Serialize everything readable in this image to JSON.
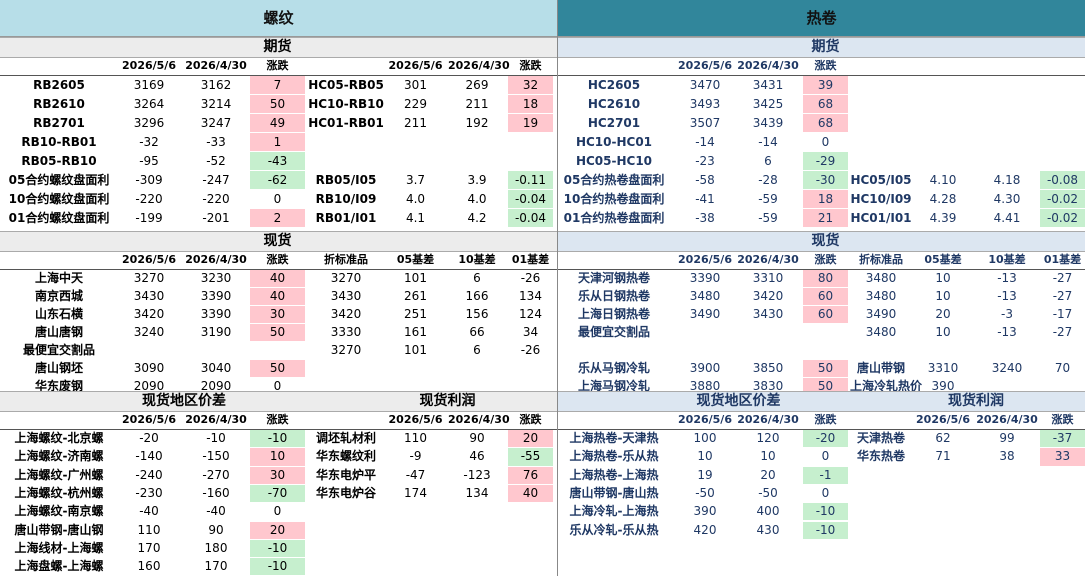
{
  "left": {
    "title": "螺纹",
    "sections": [
      {
        "titles": [
          "期货"
        ],
        "highlight_cols": [
          3,
          7
        ],
        "header": [
          null,
          "2026/5/6",
          "2026/4/30",
          "涨跌",
          null,
          "2026/5/6",
          "2026/4/30",
          "涨跌"
        ],
        "rows": [
          [
            "RB2605",
            "3169",
            "3162",
            "7",
            "HC05-RB05",
            "301",
            "269",
            "32"
          ],
          [
            "RB2610",
            "3264",
            "3214",
            "50",
            "HC10-RB10",
            "229",
            "211",
            "18"
          ],
          [
            "RB2701",
            "3296",
            "3247",
            "49",
            "HC01-RB01",
            "211",
            "192",
            "19"
          ],
          [
            "RB10-RB01",
            "-32",
            "-33",
            "1"
          ],
          [
            "RB05-RB10",
            "-95",
            "-52",
            "-43"
          ],
          [
            "05合约螺纹盘面利",
            "-309",
            "-247",
            "-62",
            "RB05/I05",
            "3.7",
            "3.9",
            "-0.11"
          ],
          [
            "10合约螺纹盘面利",
            "-220",
            "-220",
            "0",
            "RB10/I09",
            "4.0",
            "4.0",
            "-0.04"
          ],
          [
            "01合约螺纹盘面利",
            "-199",
            "-201",
            "2",
            "RB01/I01",
            "4.1",
            "4.2",
            "-0.04"
          ]
        ]
      },
      {
        "titles": [
          "现货"
        ],
        "highlight_cols": [
          3
        ],
        "header": [
          null,
          "2026/5/6",
          "2026/4/30",
          "涨跌",
          "折标准品",
          "05基差",
          "10基差",
          "01基差"
        ],
        "rows": [
          [
            "上海中天",
            "3270",
            "3230",
            "40",
            "3270",
            "101",
            "6",
            "-26"
          ],
          [
            "南京西城",
            "3430",
            "3390",
            "40",
            "3430",
            "261",
            "166",
            "134"
          ],
          [
            "山东石横",
            "3420",
            "3390",
            "30",
            "3420",
            "251",
            "156",
            "124"
          ],
          [
            "唐山唐钢",
            "3240",
            "3190",
            "50",
            "3330",
            "161",
            "66",
            "34"
          ],
          [
            "最便宜交割品",
            null,
            null,
            null,
            "3270",
            "101",
            "6",
            "-26"
          ],
          [
            "唐山钢坯",
            "3090",
            "3040",
            "50"
          ],
          [
            "华东废钢",
            "2090",
            "2090",
            "0"
          ]
        ]
      },
      {
        "titles": [
          "现货地区价差",
          "现货利润"
        ],
        "highlight_cols": [
          3,
          7
        ],
        "header": [
          null,
          "2026/5/6",
          "2026/4/30",
          "涨跌",
          null,
          "2026/5/6",
          "2026/4/30",
          "涨跌"
        ],
        "rows": [
          [
            "上海螺纹-北京螺",
            "-20",
            "-10",
            "-10",
            "调坯轧材利",
            "110",
            "90",
            "20"
          ],
          [
            "上海螺纹-济南螺",
            "-140",
            "-150",
            "10",
            "华东螺纹利",
            "-9",
            "46",
            "-55"
          ],
          [
            "上海螺纹-广州螺",
            "-240",
            "-270",
            "30",
            "华东电炉平",
            "-47",
            "-123",
            "76"
          ],
          [
            "上海螺纹-杭州螺",
            "-230",
            "-160",
            "-70",
            "华东电炉谷",
            "174",
            "134",
            "40"
          ],
          [
            "上海螺纹-南京螺",
            "-40",
            "-40",
            "0"
          ],
          [
            "唐山带钢-唐山钢",
            "110",
            "90",
            "20"
          ],
          [
            "上海线材-上海螺",
            "170",
            "180",
            "-10"
          ],
          [
            "上海盘螺-上海螺",
            "160",
            "170",
            "-10"
          ]
        ]
      }
    ]
  },
  "right": {
    "title": "热卷",
    "sections": [
      {
        "titles": [
          "期货"
        ],
        "highlight_cols": [
          3,
          7
        ],
        "header": [
          null,
          "2026/5/6",
          "2026/4/30",
          "涨跌"
        ],
        "rows": [
          [
            "HC2605",
            "3470",
            "3431",
            "39"
          ],
          [
            "HC2610",
            "3493",
            "3425",
            "68"
          ],
          [
            "HC2701",
            "3507",
            "3439",
            "68"
          ],
          [
            "HC10-HC01",
            "-14",
            "-14",
            "0"
          ],
          [
            "HC05-HC10",
            "-23",
            "6",
            "-29"
          ],
          [
            "05合约热卷盘面利",
            "-58",
            "-28",
            "-30",
            "HC05/I05",
            "4.10",
            "4.18",
            "-0.08"
          ],
          [
            "10合约热卷盘面利",
            "-41",
            "-59",
            "18",
            "HC10/I09",
            "4.28",
            "4.30",
            "-0.02"
          ],
          [
            "01合约热卷盘面利",
            "-38",
            "-59",
            "21",
            "HC01/I01",
            "4.39",
            "4.41",
            "-0.02"
          ]
        ]
      },
      {
        "titles": [
          "现货"
        ],
        "highlight_cols": [
          3
        ],
        "header": [
          null,
          "2026/5/6",
          "2026/4/30",
          "涨跌",
          "折标准品",
          "05基差",
          "10基差",
          "01基差"
        ],
        "rows": [
          [
            "天津河钢热卷",
            "3390",
            "3310",
            "80",
            "3480",
            "10",
            "-13",
            "-27"
          ],
          [
            "乐从日钢热卷",
            "3480",
            "3420",
            "60",
            "3480",
            "10",
            "-13",
            "-27"
          ],
          [
            "上海日钢热卷",
            "3490",
            "3430",
            "60",
            "3490",
            "20",
            "-3",
            "-17"
          ],
          [
            "最便宜交割品",
            null,
            null,
            null,
            "3480",
            "10",
            "-13",
            "-27"
          ],
          null,
          [
            "乐从马钢冷轧",
            "3900",
            "3850",
            "50",
            "唐山带钢",
            "3310",
            "3240",
            "70"
          ],
          [
            "上海马钢冷轧",
            "3880",
            "3830",
            "50",
            "上海冷轧热价",
            "390"
          ]
        ]
      },
      {
        "titles": [
          "现货地区价差",
          "现货利润"
        ],
        "highlight_cols": [
          3,
          7
        ],
        "header": [
          null,
          "2026/5/6",
          "2026/4/30",
          "涨跌",
          null,
          "2026/5/6",
          "2026/4/30",
          "涨跌"
        ],
        "rows": [
          [
            "上海热卷-天津热",
            "100",
            "120",
            "-20",
            "天津热卷",
            "62",
            "99",
            "-37"
          ],
          [
            "上海热卷-乐从热",
            "10",
            "10",
            "0",
            "华东热卷",
            "71",
            "38",
            "33"
          ],
          [
            "上海热卷-上海热",
            "19",
            "20",
            "-1"
          ],
          [
            "唐山带钢-唐山热",
            "-50",
            "-50",
            "0"
          ],
          [
            "上海冷轧-上海热",
            "390",
            "400",
            "-10"
          ],
          [
            "乐从冷轧-乐从热",
            "420",
            "430",
            "-10"
          ]
        ]
      }
    ]
  }
}
